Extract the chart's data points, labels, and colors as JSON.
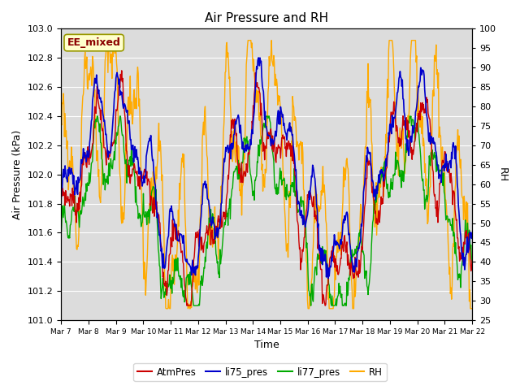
{
  "title": "Air Pressure and RH",
  "xlabel": "Time",
  "ylabel_left": "Air Pressure (kPa)",
  "ylabel_right": "RH",
  "annotation": "EE_mixed",
  "ylim_left": [
    101.0,
    103.0
  ],
  "ylim_right": [
    25,
    100
  ],
  "yticks_left": [
    101.0,
    101.2,
    101.4,
    101.6,
    101.8,
    102.0,
    102.2,
    102.4,
    102.6,
    102.8,
    103.0
  ],
  "yticks_right": [
    25,
    30,
    35,
    40,
    45,
    50,
    55,
    60,
    65,
    70,
    75,
    80,
    85,
    90,
    95,
    100
  ],
  "xtick_labels": [
    "Mar 7",
    "Mar 8",
    "Mar 9",
    "Mar 10",
    "Mar 11",
    "Mar 12",
    "Mar 13",
    "Mar 14",
    "Mar 15",
    "Mar 16",
    "Mar 17",
    "Mar 18",
    "Mar 19",
    "Mar 20",
    "Mar 21",
    "Mar 22"
  ],
  "colors": {
    "AtmPres": "#cc0000",
    "li75_pres": "#0000cc",
    "li77_pres": "#00aa00",
    "RH": "#ffaa00"
  },
  "linewidths": {
    "AtmPres": 1.0,
    "li75_pres": 1.2,
    "li77_pres": 1.0,
    "RH": 1.0
  },
  "background_color": "#dcdcdc",
  "figure_background": "#ffffff",
  "annotation_color": "#8b0000",
  "annotation_bg": "#ffffcc",
  "annotation_border": "#999900",
  "legend_colors": [
    "#cc0000",
    "#0000cc",
    "#00aa00",
    "#ffaa00"
  ],
  "legend_labels": [
    "AtmPres",
    "li75_pres",
    "li77_pres",
    "RH"
  ]
}
